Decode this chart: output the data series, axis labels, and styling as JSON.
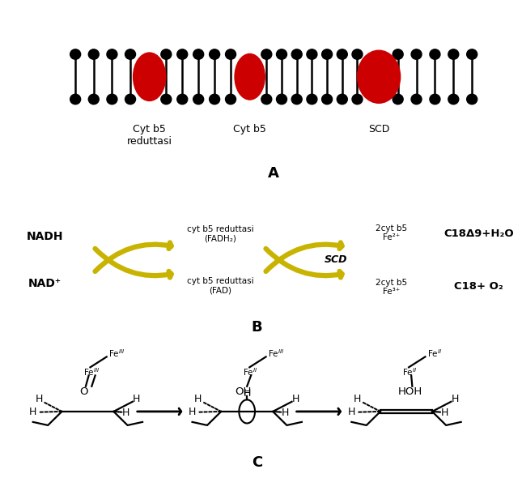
{
  "bg_color": "#ffffff",
  "panel_A_label": "A",
  "panel_B_label": "B",
  "panel_C_label": "C",
  "membrane_color": "#000000",
  "protein_color": "#cc0000",
  "arrow_color": "#c8b400",
  "labels_A": [
    "Cyt b5\nreduttasi",
    "Cyt b5",
    "SCD"
  ],
  "nadh_text": "NADH",
  "nad_text": "NAD⁺",
  "top_label1": "cyt b5 reduttasi\n(FADH₂)",
  "bot_label1": "cyt b5 reduttasi\n(FAD)",
  "top_label2": "2cyt b5\nFe²⁺",
  "bot_label2": "2cyt b5\nFe³⁺",
  "scd_label": "SCD",
  "c18_top": "C18Δ9+H₂O",
  "c18_bot": "C18+ O₂"
}
